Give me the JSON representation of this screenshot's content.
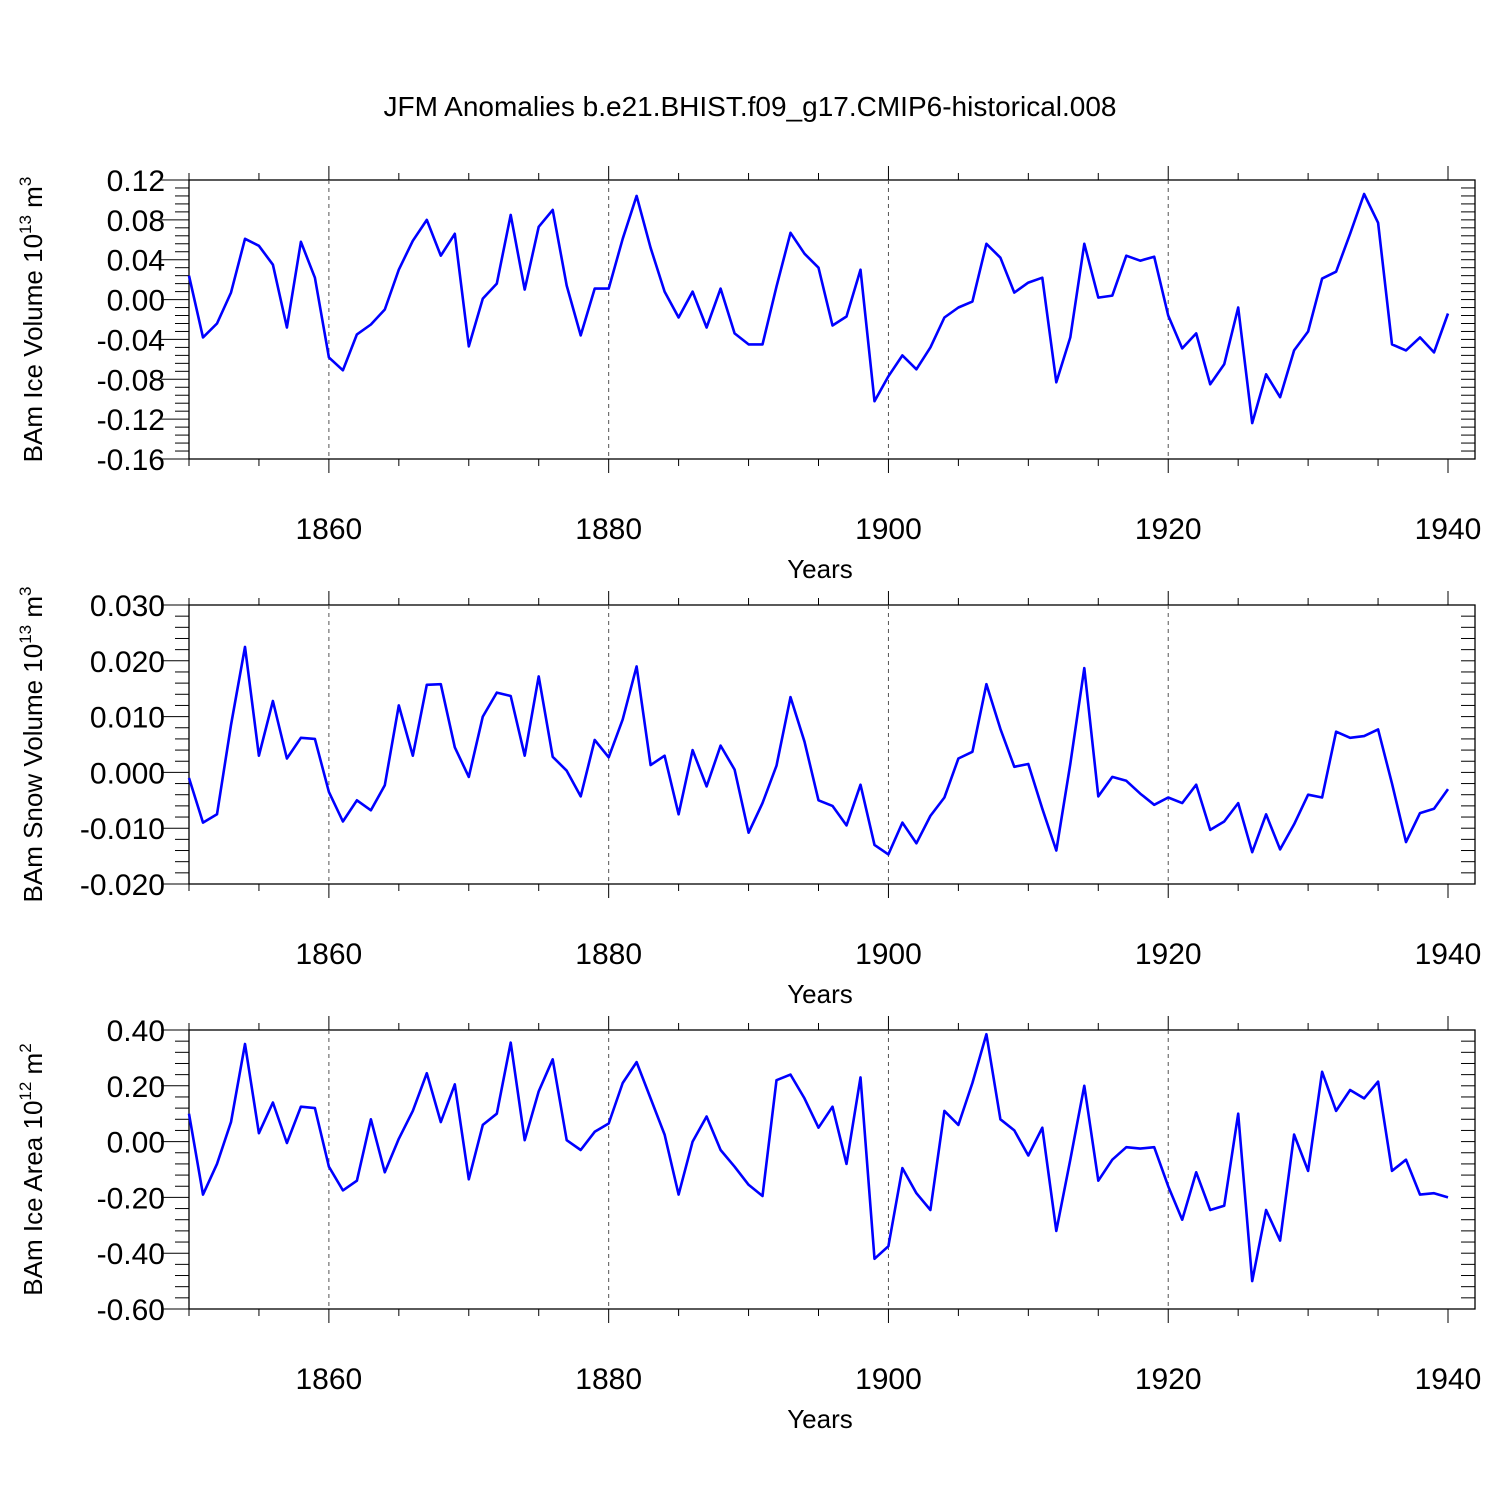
{
  "figure_title": "JFM Anomalies b.e21.BHIST.f09_g17.CMIP6-historical.008",
  "chart_data": [
    {
      "type": "line",
      "ylabel": {
        "prefix": "BAm Ice Volume 10",
        "exp": "13",
        "unit": " m",
        "unit_exp": "3"
      },
      "xlabel": "Years",
      "xlim": [
        1850,
        1940
      ],
      "ylim": [
        -0.16,
        0.12
      ],
      "yticks": [
        -0.16,
        -0.12,
        -0.08,
        -0.04,
        0.0,
        0.04,
        0.08,
        0.12
      ],
      "ytick_labels": [
        "-0.16",
        "-0.12",
        "-0.08",
        "-0.04",
        "0.00",
        "0.04",
        "0.08",
        "0.12"
      ],
      "xticks": [
        1860,
        1880,
        1900,
        1920,
        1940
      ],
      "xtick_labels": [
        "1860",
        "1880",
        "1900",
        "1920",
        "1940"
      ],
      "grid_x": [
        1860,
        1880,
        1900,
        1920
      ],
      "series": [
        {
          "name": "Ice Volume",
          "color": "#0000ff",
          "x_start": 1850,
          "values": [
            0.024,
            -0.038,
            -0.024,
            0.007,
            0.061,
            0.054,
            0.035,
            -0.028,
            0.058,
            0.022,
            -0.058,
            -0.071,
            -0.035,
            -0.025,
            -0.01,
            0.03,
            0.059,
            0.08,
            0.044,
            0.066,
            -0.047,
            0.001,
            0.016,
            0.085,
            0.01,
            0.073,
            0.09,
            0.014,
            -0.036,
            0.011,
            0.011,
            0.061,
            0.104,
            0.052,
            0.008,
            -0.018,
            0.008,
            -0.028,
            0.011,
            -0.034,
            -0.045,
            -0.045,
            0.013,
            0.067,
            0.046,
            0.032,
            -0.026,
            -0.017,
            0.03,
            -0.102,
            -0.077,
            -0.056,
            -0.07,
            -0.048,
            -0.018,
            -0.008,
            -0.002,
            0.056,
            0.042,
            0.007,
            0.017,
            0.022,
            -0.083,
            -0.038,
            0.056,
            0.002,
            0.004,
            0.044,
            0.039,
            0.043,
            -0.016,
            -0.049,
            -0.034,
            -0.085,
            -0.065,
            -0.008,
            -0.124,
            -0.075,
            -0.098,
            -0.051,
            -0.032,
            0.021,
            0.028,
            0.066,
            0.106,
            0.077,
            -0.045,
            -0.051,
            -0.038,
            -0.053,
            -0.014
          ]
        }
      ]
    },
    {
      "type": "line",
      "ylabel": {
        "prefix": "BAm Snow Volume 10",
        "exp": "13",
        "unit": " m",
        "unit_exp": "3"
      },
      "xlabel": "Years",
      "xlim": [
        1850,
        1940
      ],
      "ylim": [
        -0.02,
        0.03
      ],
      "yticks": [
        -0.02,
        -0.01,
        0.0,
        0.01,
        0.02,
        0.03
      ],
      "ytick_labels": [
        "-0.020",
        "-0.010",
        "0.000",
        "0.010",
        "0.020",
        "0.030"
      ],
      "xticks": [
        1860,
        1880,
        1900,
        1920,
        1940
      ],
      "xtick_labels": [
        "1860",
        "1880",
        "1900",
        "1920",
        "1940"
      ],
      "grid_x": [
        1860,
        1880,
        1900,
        1920
      ],
      "series": [
        {
          "name": "Snow Volume",
          "color": "#0000ff",
          "x_start": 1850,
          "values": [
            -0.001,
            -0.009,
            -0.0075,
            0.0085,
            0.0225,
            0.003,
            0.0128,
            0.0025,
            0.0062,
            0.006,
            -0.0035,
            -0.0088,
            -0.005,
            -0.0068,
            -0.0023,
            0.012,
            0.003,
            0.0157,
            0.0158,
            0.0045,
            -0.0008,
            0.01,
            0.0143,
            0.0137,
            0.003,
            0.0172,
            0.0028,
            0.0003,
            -0.0043,
            0.0058,
            0.0027,
            0.0095,
            0.019,
            0.0013,
            0.003,
            -0.0075,
            0.004,
            -0.0025,
            0.0048,
            0.0005,
            -0.0108,
            -0.0055,
            0.0012,
            0.0135,
            0.0055,
            -0.005,
            -0.006,
            -0.0095,
            -0.0022,
            -0.013,
            -0.0147,
            -0.009,
            -0.0127,
            -0.0078,
            -0.0045,
            0.0025,
            0.0037,
            0.0158,
            0.0078,
            0.001,
            0.0015,
            -0.0065,
            -0.014,
            0.0015,
            0.0187,
            -0.0043,
            -0.0008,
            -0.0015,
            -0.0038,
            -0.0058,
            -0.0045,
            -0.0055,
            -0.0022,
            -0.0103,
            -0.0088,
            -0.0055,
            -0.0143,
            -0.0075,
            -0.0138,
            -0.0093,
            -0.004,
            -0.0045,
            0.0073,
            0.0062,
            0.0065,
            0.0077,
            -0.002,
            -0.0125,
            -0.0073,
            -0.0065,
            -0.003
          ]
        }
      ]
    },
    {
      "type": "line",
      "ylabel": {
        "prefix": "BAm Ice Area 10",
        "exp": "12",
        "unit": " m",
        "unit_exp": "2"
      },
      "xlabel": "Years",
      "xlim": [
        1850,
        1940
      ],
      "ylim": [
        -0.6,
        0.4
      ],
      "yticks": [
        -0.6,
        -0.4,
        -0.2,
        0.0,
        0.2,
        0.4
      ],
      "ytick_labels": [
        "-0.60",
        "-0.40",
        "-0.20",
        "0.00",
        "0.20",
        "0.40"
      ],
      "xticks": [
        1860,
        1880,
        1900,
        1920,
        1940
      ],
      "xtick_labels": [
        "1860",
        "1880",
        "1900",
        "1920",
        "1940"
      ],
      "grid_x": [
        1860,
        1880,
        1900,
        1920
      ],
      "series": [
        {
          "name": "Ice Area",
          "color": "#0000ff",
          "x_start": 1850,
          "values": [
            0.1,
            -0.19,
            -0.08,
            0.07,
            0.35,
            0.03,
            0.14,
            -0.005,
            0.125,
            0.12,
            -0.09,
            -0.175,
            -0.14,
            0.08,
            -0.11,
            0.01,
            0.11,
            0.245,
            0.07,
            0.205,
            -0.135,
            0.06,
            0.1,
            0.355,
            0.005,
            0.18,
            0.295,
            0.005,
            -0.03,
            0.035,
            0.065,
            0.21,
            0.285,
            0.155,
            0.025,
            -0.19,
            0.0,
            0.09,
            -0.03,
            -0.09,
            -0.155,
            -0.195,
            0.22,
            0.24,
            0.155,
            0.05,
            0.125,
            -0.08,
            0.23,
            -0.42,
            -0.375,
            -0.095,
            -0.185,
            -0.245,
            0.11,
            0.06,
            0.21,
            0.385,
            0.08,
            0.04,
            -0.05,
            0.05,
            -0.32,
            -0.065,
            0.2,
            -0.14,
            -0.065,
            -0.02,
            -0.025,
            -0.02,
            -0.16,
            -0.28,
            -0.11,
            -0.245,
            -0.23,
            0.1,
            -0.5,
            -0.245,
            -0.355,
            0.025,
            -0.105,
            0.25,
            0.11,
            0.185,
            0.155,
            0.215,
            -0.105,
            -0.065,
            -0.19,
            -0.185,
            -0.2
          ]
        }
      ]
    }
  ]
}
